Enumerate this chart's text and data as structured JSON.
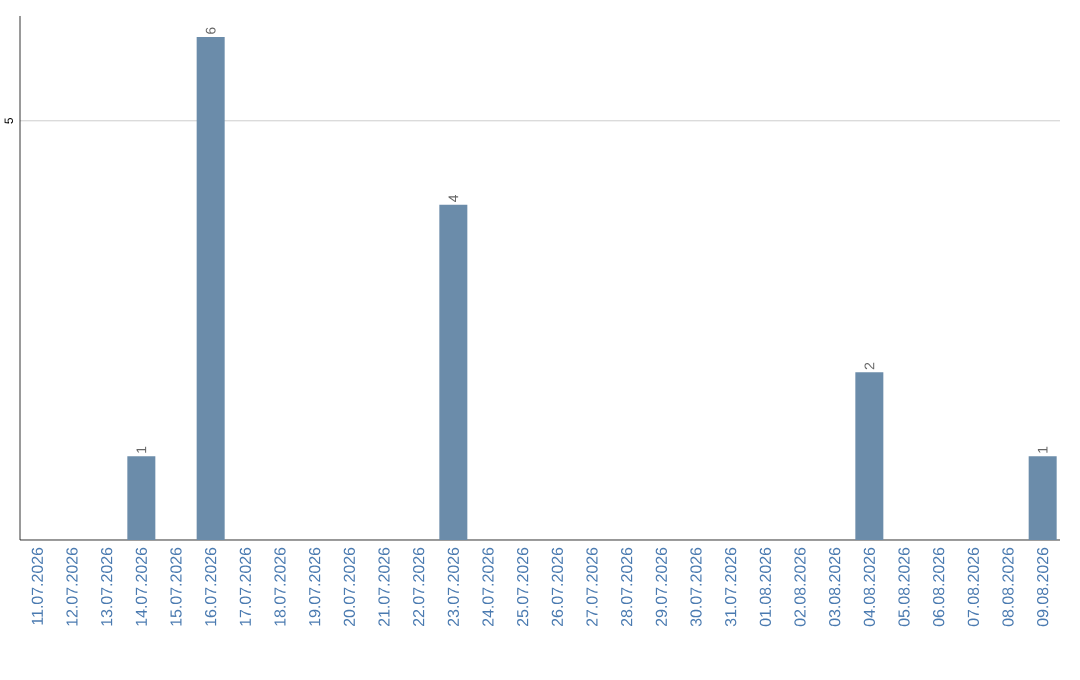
{
  "chart_data": {
    "type": "bar",
    "categories": [
      "11.07.2026",
      "12.07.2026",
      "13.07.2026",
      "14.07.2026",
      "15.07.2026",
      "16.07.2026",
      "17.07.2026",
      "18.07.2026",
      "19.07.2026",
      "20.07.2026",
      "21.07.2026",
      "22.07.2026",
      "23.07.2026",
      "24.07.2026",
      "25.07.2026",
      "26.07.2026",
      "27.07.2026",
      "28.07.2026",
      "29.07.2026",
      "30.07.2026",
      "31.07.2026",
      "01.08.2026",
      "02.08.2026",
      "03.08.2026",
      "04.08.2026",
      "05.08.2026",
      "06.08.2026",
      "07.08.2026",
      "08.08.2026",
      "09.08.2026"
    ],
    "values": [
      0,
      0,
      0,
      1,
      0,
      6,
      0,
      0,
      0,
      0,
      0,
      0,
      4,
      0,
      0,
      0,
      0,
      0,
      0,
      0,
      0,
      0,
      0,
      0,
      2,
      0,
      0,
      0,
      0,
      1
    ],
    "value_labels": [
      null,
      null,
      null,
      "1",
      null,
      "6",
      null,
      null,
      null,
      null,
      null,
      null,
      "4",
      null,
      null,
      null,
      null,
      null,
      null,
      null,
      null,
      null,
      null,
      null,
      "2",
      null,
      null,
      null,
      null,
      "1"
    ],
    "color": "#6b8caa",
    "ylim": [
      0,
      6.25
    ],
    "yticks": [
      5
    ],
    "grid": "y"
  }
}
